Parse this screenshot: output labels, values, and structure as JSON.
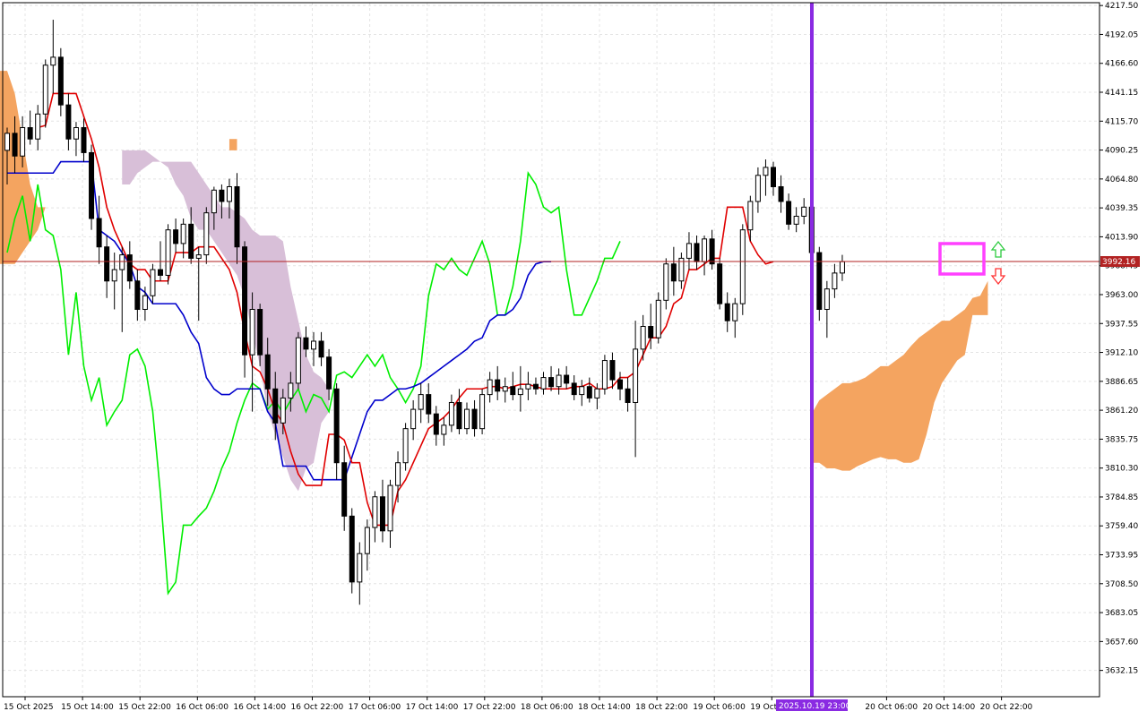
{
  "chart_data": {
    "type": "candlestick",
    "instrument_price_label": "3992.16",
    "crosshair_time_label": "2025.10.19 23:00",
    "y_ticks": [
      "4217.50",
      "4192.05",
      "4166.60",
      "4141.15",
      "4115.70",
      "4090.25",
      "4064.80",
      "4039.35",
      "4013.90",
      "3988.45",
      "3963.00",
      "3937.55",
      "3912.10",
      "3886.65",
      "3861.20",
      "3835.75",
      "3810.30",
      "3784.85",
      "3759.40",
      "3733.95",
      "3708.50",
      "3683.05",
      "3657.60",
      "3632.15"
    ],
    "x_ticks": [
      "15 Oct 2025",
      "15 Oct 14:00",
      "15 Oct 22:00",
      "16 Oct 06:00",
      "16 Oct 14:00",
      "16 Oct 22:00",
      "17 Oct 06:00",
      "17 Oct 14:00",
      "17 Oct 22:00",
      "18 Oct 06:00",
      "18 Oct 14:00",
      "18 Oct 22:00",
      "19 Oct 06:00",
      "19 Oct 14:00",
      "20 Oct 06:00",
      "20 Oct 14:00",
      "20 Oct 22:00"
    ],
    "ylim": [
      3609,
      4220
    ],
    "grid": true,
    "colors": {
      "tenkan": "#e00000",
      "kijun": "#0000cc",
      "chikou": "#00ee00",
      "cloud_bull": "#f4a460",
      "cloud_bear": "#d8bfd8",
      "crosshair": "#8a2be2",
      "marker_box": "#ff40ff",
      "arrow_up": "#2ecc40",
      "arrow_down": "#ff3030",
      "price_line": "#b22222"
    },
    "candles": [
      {
        "o": 4090,
        "h": 4110,
        "l": 4060,
        "c": 4105
      },
      {
        "o": 4105,
        "h": 4120,
        "l": 4070,
        "c": 4085
      },
      {
        "o": 4085,
        "h": 4120,
        "l": 4075,
        "c": 4110
      },
      {
        "o": 4110,
        "h": 4125,
        "l": 4095,
        "c": 4100
      },
      {
        "o": 4100,
        "h": 4130,
        "l": 4090,
        "c": 4122
      },
      {
        "o": 4122,
        "h": 4170,
        "l": 4110,
        "c": 4165
      },
      {
        "o": 4165,
        "h": 4205,
        "l": 4140,
        "c": 4172
      },
      {
        "o": 4172,
        "h": 4180,
        "l": 4120,
        "c": 4130
      },
      {
        "o": 4130,
        "h": 4140,
        "l": 4090,
        "c": 4100
      },
      {
        "o": 4100,
        "h": 4115,
        "l": 4085,
        "c": 4110
      },
      {
        "o": 4110,
        "h": 4118,
        "l": 4080,
        "c": 4088
      },
      {
        "o": 4088,
        "h": 4095,
        "l": 4020,
        "c": 4030
      },
      {
        "o": 4030,
        "h": 4050,
        "l": 3990,
        "c": 4005
      },
      {
        "o": 4005,
        "h": 4015,
        "l": 3960,
        "c": 3975
      },
      {
        "o": 3975,
        "h": 4000,
        "l": 3950,
        "c": 3985
      },
      {
        "o": 3985,
        "h": 4005,
        "l": 3930,
        "c": 3998
      },
      {
        "o": 3998,
        "h": 4010,
        "l": 3968,
        "c": 3975
      },
      {
        "o": 3975,
        "h": 3985,
        "l": 3940,
        "c": 3950
      },
      {
        "o": 3950,
        "h": 3970,
        "l": 3940,
        "c": 3962
      },
      {
        "o": 3962,
        "h": 3990,
        "l": 3955,
        "c": 3985
      },
      {
        "o": 3985,
        "h": 4010,
        "l": 3975,
        "c": 3980
      },
      {
        "o": 3980,
        "h": 4025,
        "l": 3972,
        "c": 4020
      },
      {
        "o": 4020,
        "h": 4030,
        "l": 4000,
        "c": 4008
      },
      {
        "o": 4008,
        "h": 4030,
        "l": 3995,
        "c": 4025
      },
      {
        "o": 4025,
        "h": 4040,
        "l": 3990,
        "c": 3995
      },
      {
        "o": 3995,
        "h": 4005,
        "l": 3940,
        "c": 3998
      },
      {
        "o": 3998,
        "h": 4040,
        "l": 3990,
        "c": 4035
      },
      {
        "o": 4035,
        "h": 4058,
        "l": 4020,
        "c": 4055
      },
      {
        "o": 4055,
        "h": 4060,
        "l": 4030,
        "c": 4045
      },
      {
        "o": 4045,
        "h": 4065,
        "l": 4030,
        "c": 4058
      },
      {
        "o": 4058,
        "h": 4070,
        "l": 3990,
        "c": 4005
      },
      {
        "o": 4005,
        "h": 4010,
        "l": 3890,
        "c": 3910
      },
      {
        "o": 3910,
        "h": 3965,
        "l": 3860,
        "c": 3950
      },
      {
        "o": 3950,
        "h": 3955,
        "l": 3900,
        "c": 3910
      },
      {
        "o": 3910,
        "h": 3925,
        "l": 3865,
        "c": 3880
      },
      {
        "o": 3880,
        "h": 3895,
        "l": 3835,
        "c": 3850
      },
      {
        "o": 3850,
        "h": 3880,
        "l": 3840,
        "c": 3872
      },
      {
        "o": 3872,
        "h": 3895,
        "l": 3860,
        "c": 3885
      },
      {
        "o": 3885,
        "h": 3930,
        "l": 3880,
        "c": 3925
      },
      {
        "o": 3925,
        "h": 3935,
        "l": 3908,
        "c": 3915
      },
      {
        "o": 3915,
        "h": 3930,
        "l": 3900,
        "c": 3922
      },
      {
        "o": 3922,
        "h": 3930,
        "l": 3900,
        "c": 3908
      },
      {
        "o": 3908,
        "h": 3915,
        "l": 3870,
        "c": 3880
      },
      {
        "o": 3880,
        "h": 3885,
        "l": 3800,
        "c": 3815
      },
      {
        "o": 3815,
        "h": 3830,
        "l": 3755,
        "c": 3768
      },
      {
        "o": 3768,
        "h": 3775,
        "l": 3700,
        "c": 3710
      },
      {
        "o": 3710,
        "h": 3745,
        "l": 3690,
        "c": 3735
      },
      {
        "o": 3735,
        "h": 3765,
        "l": 3720,
        "c": 3758
      },
      {
        "o": 3758,
        "h": 3790,
        "l": 3745,
        "c": 3785
      },
      {
        "o": 3785,
        "h": 3800,
        "l": 3745,
        "c": 3755
      },
      {
        "o": 3755,
        "h": 3800,
        "l": 3740,
        "c": 3795
      },
      {
        "o": 3795,
        "h": 3825,
        "l": 3780,
        "c": 3815
      },
      {
        "o": 3815,
        "h": 3850,
        "l": 3808,
        "c": 3845
      },
      {
        "o": 3845,
        "h": 3870,
        "l": 3835,
        "c": 3862
      },
      {
        "o": 3862,
        "h": 3885,
        "l": 3850,
        "c": 3875
      },
      {
        "o": 3875,
        "h": 3885,
        "l": 3850,
        "c": 3858
      },
      {
        "o": 3858,
        "h": 3865,
        "l": 3830,
        "c": 3840
      },
      {
        "o": 3840,
        "h": 3855,
        "l": 3830,
        "c": 3848
      },
      {
        "o": 3848,
        "h": 3875,
        "l": 3842,
        "c": 3868
      },
      {
        "o": 3868,
        "h": 3880,
        "l": 3840,
        "c": 3845
      },
      {
        "o": 3845,
        "h": 3868,
        "l": 3840,
        "c": 3862
      },
      {
        "o": 3862,
        "h": 3870,
        "l": 3838,
        "c": 3845
      },
      {
        "o": 3845,
        "h": 3880,
        "l": 3840,
        "c": 3875
      },
      {
        "o": 3875,
        "h": 3895,
        "l": 3868,
        "c": 3888
      },
      {
        "o": 3888,
        "h": 3900,
        "l": 3870,
        "c": 3878
      },
      {
        "o": 3878,
        "h": 3890,
        "l": 3868,
        "c": 3882
      },
      {
        "o": 3882,
        "h": 3895,
        "l": 3870,
        "c": 3875
      },
      {
        "o": 3875,
        "h": 3900,
        "l": 3860,
        "c": 3880
      },
      {
        "o": 3880,
        "h": 3895,
        "l": 3870,
        "c": 3884
      },
      {
        "o": 3884,
        "h": 3890,
        "l": 3875,
        "c": 3880
      },
      {
        "o": 3880,
        "h": 3895,
        "l": 3875,
        "c": 3890
      },
      {
        "o": 3890,
        "h": 3900,
        "l": 3878,
        "c": 3882
      },
      {
        "o": 3882,
        "h": 3898,
        "l": 3875,
        "c": 3892
      },
      {
        "o": 3892,
        "h": 3900,
        "l": 3880,
        "c": 3885
      },
      {
        "o": 3885,
        "h": 3892,
        "l": 3870,
        "c": 3875
      },
      {
        "o": 3875,
        "h": 3888,
        "l": 3865,
        "c": 3882
      },
      {
        "o": 3882,
        "h": 3890,
        "l": 3868,
        "c": 3872
      },
      {
        "o": 3872,
        "h": 3885,
        "l": 3862,
        "c": 3880
      },
      {
        "o": 3880,
        "h": 3910,
        "l": 3875,
        "c": 3905
      },
      {
        "o": 3905,
        "h": 3912,
        "l": 3880,
        "c": 3888
      },
      {
        "o": 3888,
        "h": 3895,
        "l": 3870,
        "c": 3880
      },
      {
        "o": 3880,
        "h": 3890,
        "l": 3860,
        "c": 3868
      },
      {
        "o": 3868,
        "h": 3940,
        "l": 3820,
        "c": 3915
      },
      {
        "o": 3915,
        "h": 3945,
        "l": 3905,
        "c": 3935
      },
      {
        "o": 3935,
        "h": 3955,
        "l": 3915,
        "c": 3925
      },
      {
        "o": 3925,
        "h": 3965,
        "l": 3920,
        "c": 3958
      },
      {
        "o": 3958,
        "h": 3995,
        "l": 3950,
        "c": 3990
      },
      {
        "o": 3990,
        "h": 4005,
        "l": 3962,
        "c": 3975
      },
      {
        "o": 3975,
        "h": 4000,
        "l": 3968,
        "c": 3995
      },
      {
        "o": 3995,
        "h": 4018,
        "l": 3985,
        "c": 4008
      },
      {
        "o": 4008,
        "h": 4015,
        "l": 3985,
        "c": 3992
      },
      {
        "o": 3992,
        "h": 4015,
        "l": 3980,
        "c": 4012
      },
      {
        "o": 4012,
        "h": 4020,
        "l": 3985,
        "c": 3990
      },
      {
        "o": 3990,
        "h": 3995,
        "l": 3950,
        "c": 3955
      },
      {
        "o": 3955,
        "h": 3965,
        "l": 3930,
        "c": 3940
      },
      {
        "o": 3940,
        "h": 3960,
        "l": 3925,
        "c": 3955
      },
      {
        "o": 3955,
        "h": 4025,
        "l": 3945,
        "c": 4020
      },
      {
        "o": 4020,
        "h": 4050,
        "l": 4010,
        "c": 4045
      },
      {
        "o": 4045,
        "h": 4075,
        "l": 4035,
        "c": 4068
      },
      {
        "o": 4068,
        "h": 4082,
        "l": 4050,
        "c": 4075
      },
      {
        "o": 4075,
        "h": 4080,
        "l": 4050,
        "c": 4058
      },
      {
        "o": 4058,
        "h": 4068,
        "l": 4035,
        "c": 4045
      },
      {
        "o": 4045,
        "h": 4052,
        "l": 4020,
        "c": 4025
      },
      {
        "o": 4025,
        "h": 4040,
        "l": 4018,
        "c": 4032
      },
      {
        "o": 4032,
        "h": 4048,
        "l": 4025,
        "c": 4040
      },
      {
        "o": 4040,
        "h": 4045,
        "l": 3995,
        "c": 4000
      },
      {
        "o": 4000,
        "h": 4005,
        "l": 3940,
        "c": 3950
      },
      {
        "o": 3950,
        "h": 3975,
        "l": 3925,
        "c": 3968
      },
      {
        "o": 3968,
        "h": 3990,
        "l": 3960,
        "c": 3982
      },
      {
        "o": 3982,
        "h": 3998,
        "l": 3975,
        "c": 3992
      }
    ],
    "tenkan": [
      4110,
      4112,
      4140,
      4140,
      4140,
      4140,
      4120,
      4100,
      4075,
      4040,
      4020,
      4005,
      3990,
      3985,
      3985,
      3975,
      3975,
      3975,
      4000,
      4000,
      4000,
      4005,
      4005,
      4005,
      3995,
      3985,
      3965,
      3930,
      3900,
      3895,
      3880,
      3860,
      3850,
      3825,
      3805,
      3795,
      3795,
      3795,
      3840,
      3840,
      3835,
      3815,
      3815,
      3780,
      3760,
      3760,
      3760,
      3790,
      3800,
      3815,
      3830,
      3845,
      3850,
      3855,
      3862,
      3872,
      3880,
      3880,
      3880,
      3882,
      3882,
      3880,
      3882,
      3884,
      3884,
      3882,
      3880,
      3880,
      3880,
      3880,
      3882,
      3882,
      3885,
      3880,
      3880,
      3882,
      3890,
      3890,
      3895,
      3910,
      3925,
      3925,
      3935,
      3955,
      3960,
      3985,
      3985,
      3990,
      3995,
      3995,
      4040,
      4040,
      4040,
      4010,
      3998,
      3990,
      3992
    ],
    "kijun": [
      4070,
      4070,
      4070,
      4070,
      4070,
      4070,
      4070,
      4080,
      4080,
      4080,
      4080,
      4080,
      4020,
      4015,
      4010,
      4000,
      3990,
      3970,
      3965,
      3955,
      3955,
      3955,
      3955,
      3945,
      3930,
      3920,
      3890,
      3880,
      3875,
      3875,
      3880,
      3880,
      3880,
      3880,
      3860,
      3850,
      3812,
      3812,
      3812,
      3812,
      3800,
      3800,
      3800,
      3800,
      3800,
      3820,
      3840,
      3860,
      3870,
      3870,
      3875,
      3880,
      3880,
      3882,
      3885,
      3890,
      3895,
      3900,
      3905,
      3910,
      3915,
      3922,
      3925,
      3940,
      3945,
      3945,
      3950,
      3960,
      3980,
      3990,
      3992,
      3992
    ],
    "chikou": [
      4000,
      4030,
      4050,
      4010,
      4060,
      4020,
      4015,
      3985,
      3910,
      3965,
      3900,
      3870,
      3890,
      3848,
      3860,
      3870,
      3910,
      3915,
      3900,
      3860,
      3788,
      3700,
      3710,
      3760,
      3760,
      3768,
      3775,
      3790,
      3810,
      3825,
      3850,
      3870,
      3885,
      3880,
      3862,
      3870,
      3858,
      3870,
      3880,
      3860,
      3875,
      3872,
      3860,
      3892,
      3895,
      3890,
      3900,
      3910,
      3900,
      3910,
      3890,
      3880,
      3868,
      3880,
      3900,
      3962,
      3990,
      3985,
      3995,
      3985,
      3980,
      3995,
      4010,
      3990,
      3945,
      3945,
      3970,
      4010,
      4070,
      4060,
      4040,
      4035,
      4040,
      3985,
      3945,
      3945,
      3960,
      3975,
      3995,
      3995,
      4010
    ],
    "cloud": {
      "bull_segments": [
        {
          "top": [
            4160,
            4160,
            4140,
            4100,
            4060,
            4040,
            4040
          ],
          "bot": [
            3990,
            3990,
            3990,
            4000,
            4010,
            4020,
            4040
          ]
        },
        {
          "top": [
            4100,
            4100
          ],
          "bot": [
            4090,
            4090
          ]
        },
        {
          "top": [
            3858,
            3870,
            3875,
            3880,
            3885,
            3885,
            3887,
            3890,
            3895,
            3900,
            3900,
            3905,
            3910,
            3918,
            3925,
            3930,
            3935,
            3940,
            3940,
            3945,
            3950,
            3960,
            3962,
            3975
          ],
          "bot": [
            3815,
            3815,
            3810,
            3810,
            3808,
            3808,
            3812,
            3815,
            3818,
            3820,
            3818,
            3818,
            3815,
            3815,
            3818,
            3840,
            3868,
            3885,
            3895,
            3905,
            3910,
            3945,
            3945,
            3945
          ]
        }
      ],
      "bear_segments": [
        {
          "top": [
            4090,
            4090,
            4090,
            4090,
            4085,
            4080,
            4080,
            4080,
            4080,
            4080,
            4070,
            4060,
            4050,
            4040,
            4040,
            4035,
            4030,
            4020,
            4015,
            4015,
            4015,
            4010,
            3970,
            3940,
            3910,
            3895,
            3890,
            3880
          ],
          "bot": [
            4060,
            4060,
            4070,
            4075,
            4080,
            4080,
            4075,
            4060,
            4050,
            4030,
            4020,
            4020,
            4010,
            4000,
            3990,
            3980,
            3960,
            3930,
            3900,
            3860,
            3840,
            3820,
            3800,
            3790,
            3810,
            3815,
            3850,
            3860
          ]
        }
      ]
    },
    "annotation_arrows": [
      "up-arrow",
      "down-arrow"
    ]
  }
}
